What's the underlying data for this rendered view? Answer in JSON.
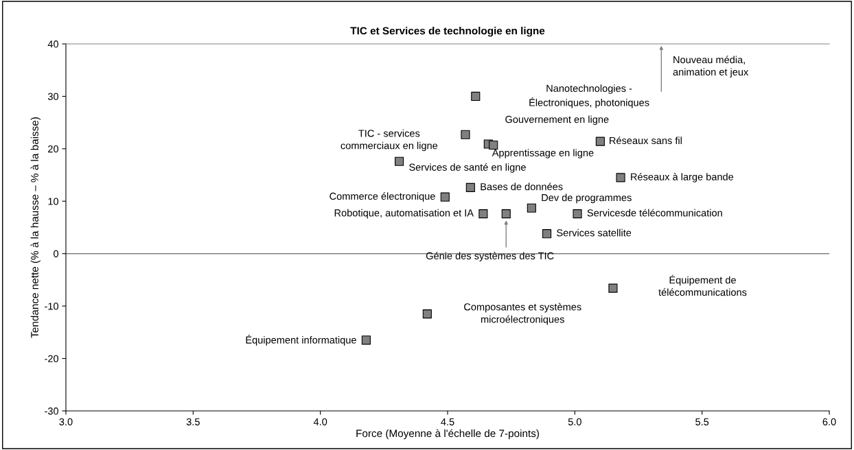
{
  "chart_data": {
    "type": "scatter",
    "title": "TIC et Services de technologie en ligne",
    "xlabel": "Force (Moyenne à l'échelle de 7-points)",
    "ylabel": "Tendance nette (% à la hausse – % à la baisse)",
    "x": [
      4.61,
      4.57,
      4.66,
      4.68,
      5.1,
      4.31,
      5.18,
      4.59,
      4.49,
      4.83,
      4.64,
      4.73,
      5.01,
      4.89,
      5.15,
      4.42,
      4.18
    ],
    "values": [
      30.0,
      22.7,
      20.9,
      20.7,
      21.4,
      17.6,
      14.5,
      12.6,
      10.8,
      8.7,
      7.6,
      7.6,
      7.6,
      3.8,
      -6.6,
      -11.5,
      -16.5
    ],
    "color": "#808080",
    "marker": "square",
    "grid": false,
    "xlim": [
      3.0,
      6.0
    ],
    "xticks": [
      {
        "value": 3.0,
        "label": "3.0"
      },
      3.5,
      {
        "value": 4.0,
        "label": "4.0"
      },
      4.5,
      {
        "value": 5.0,
        "label": "5.0"
      },
      5.5,
      {
        "value": 6.0,
        "label": "6.0"
      }
    ],
    "ylim": [
      -30,
      40
    ],
    "yticks": [
      -30,
      -20,
      -10,
      0,
      10,
      20,
      30,
      40
    ],
    "ref_lines": [
      {
        "axis": "y",
        "value": 0,
        "color": "#808080"
      }
    ],
    "annotations": [
      "Nanotechnologies -\nÉlectroniques, photoniques",
      "TIC - services\ncommerciaux en ligne",
      "Gouvernement en ligne",
      "Apprentissage en ligne",
      "Réseaux sans fil",
      "Services de santé en ligne",
      "Réseaux à large bande",
      "Bases de données",
      "Commerce électronique",
      "Dev de programmes",
      "Robotique, automatisation et IA",
      "Génie des systèmes des TIC",
      "Servicesde télécommunication",
      "Services satellite",
      "Équipement de\ntélécommunications",
      "Composantes et systèmes\nmicroélectroniques",
      "Équipement informatique",
      "Nouveau média,\nanimation et jeux"
    ]
  }
}
